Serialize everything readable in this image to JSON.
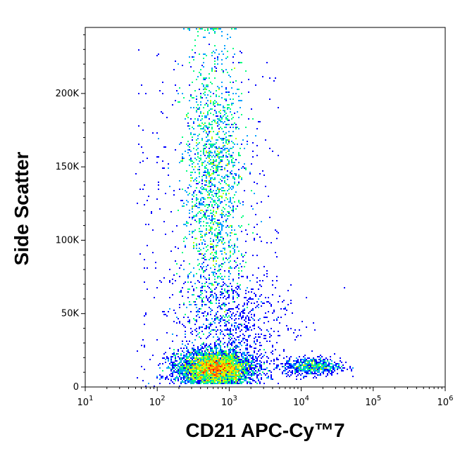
{
  "chart_data": {
    "type": "scatter",
    "subtype": "flow-cytometry-density-plot",
    "title": "",
    "xlabel": "CD21 APC-Cy™7",
    "ylabel": "Side Scatter",
    "xscale": "log",
    "xlim": [
      10,
      1000000
    ],
    "yscale": "linear",
    "ylim": [
      0,
      245000
    ],
    "x_ticks": [
      {
        "value": 10,
        "base": "10",
        "exp": "1"
      },
      {
        "value": 100,
        "base": "10",
        "exp": "2"
      },
      {
        "value": 1000,
        "base": "10",
        "exp": "3"
      },
      {
        "value": 10000,
        "base": "10",
        "exp": "4"
      },
      {
        "value": 100000,
        "base": "10",
        "exp": "5"
      },
      {
        "value": 1000000,
        "base": "10",
        "exp": "6"
      }
    ],
    "y_ticks": [
      {
        "value": 0,
        "label": "0"
      },
      {
        "value": 50000,
        "label": "50K"
      },
      {
        "value": 100000,
        "label": "100K"
      },
      {
        "value": 150000,
        "label": "150K"
      },
      {
        "value": 200000,
        "label": "200K"
      }
    ],
    "grid": false,
    "legend": "none",
    "color_scale": [
      "#0000ff",
      "#00a0ff",
      "#00ff80",
      "#c0ff00",
      "#ffe000",
      "#ff7000",
      "#ff0000"
    ],
    "populations": [
      {
        "x_center": 630,
        "y_center": 13000,
        "x_log_spread": 0.27,
        "y_spread": 6000,
        "density": "high"
      },
      {
        "x_center": 600,
        "y_center": 138000,
        "x_log_spread": 0.2,
        "y_spread": 38000,
        "density": "medium"
      },
      {
        "x_center": 14000,
        "y_center": 14000,
        "x_log_spread": 0.2,
        "y_spread": 3000,
        "density": "low"
      },
      {
        "x_center": 1200,
        "y_center": 45000,
        "x_log_spread": 0.4,
        "y_spread": 18000,
        "density": "low"
      }
    ]
  }
}
